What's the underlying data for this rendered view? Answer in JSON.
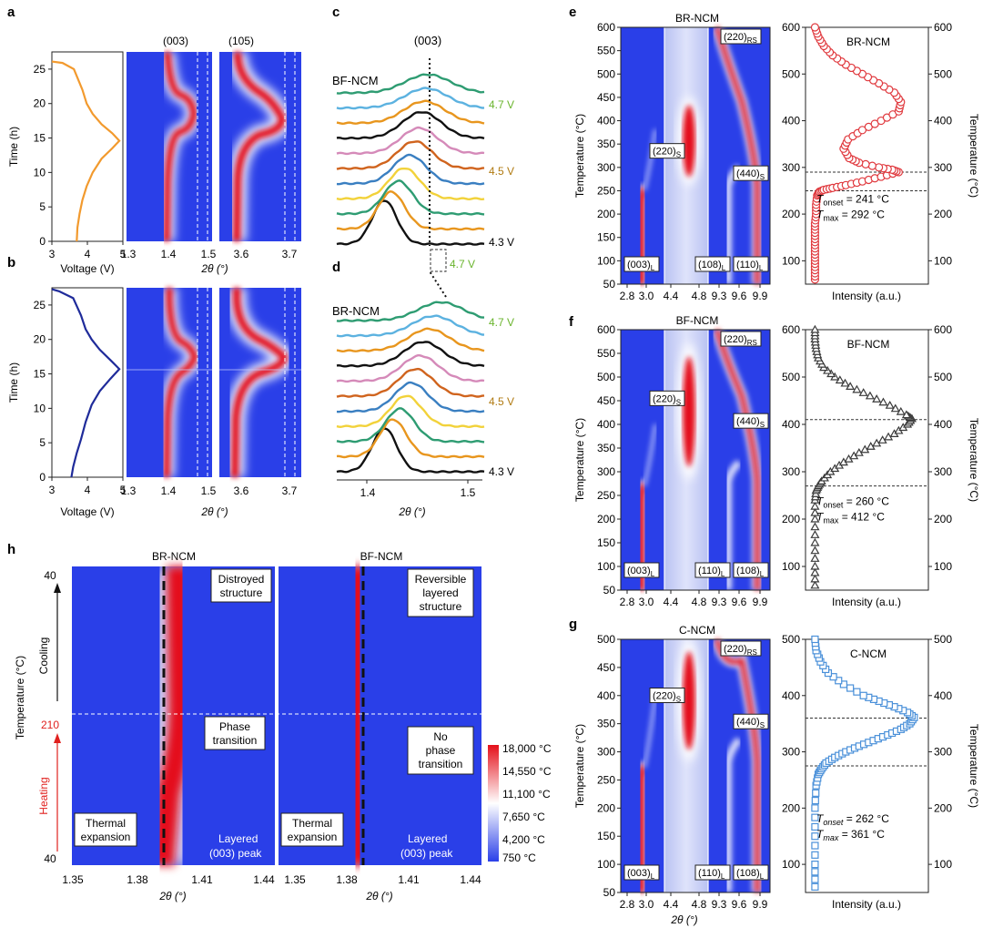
{
  "panel_letters": {
    "a": "a",
    "b": "b",
    "c": "c",
    "d": "d",
    "e": "e",
    "f": "f",
    "g": "g",
    "h": "h"
  },
  "colors": {
    "map_bg": "#2a3fe8",
    "map_high": "#e4101a",
    "voltage_a": "#f29a2e",
    "voltage_b": "#1f2b9a",
    "marker_e": "#e0393e",
    "marker_f": "#3a3a3a",
    "marker_g": "#4a90d9",
    "label_green": "#6ab42d",
    "label_gold": "#b07a10",
    "heating": "#e0201e",
    "stack_colors": [
      "#111111",
      "#e8961e",
      "#2e9c72",
      "#f2d23a",
      "#3a7fc1",
      "#d0641e",
      "#d58ab9",
      "#111111",
      "#e8961e",
      "#5cb2e0",
      "#2e9c72"
    ]
  },
  "chart_data": [
    {
      "id": "a",
      "type": "line",
      "xlabel": "Voltage (V)",
      "ylabel": "Time (h)",
      "xticks": [
        "3",
        "4",
        "5"
      ],
      "yticks": [
        "0",
        "5",
        "10",
        "15",
        "20",
        "25"
      ],
      "xlim": [
        3,
        5
      ],
      "ylim": [
        0,
        27.5
      ],
      "series": [
        {
          "x": [
            3.7,
            3.72,
            3.78,
            3.86,
            3.98,
            4.15,
            4.4,
            4.7,
            4.9,
            4.7,
            4.4,
            4.15,
            3.98,
            3.86,
            3.62,
            3.3,
            3.0
          ],
          "y": [
            0,
            2,
            4,
            6,
            8,
            10,
            12,
            13.5,
            14.6,
            15.7,
            17,
            18.5,
            20,
            22,
            25,
            25.9,
            26.1
          ]
        }
      ],
      "map_titles": [
        "(003)",
        "(105)"
      ],
      "map_xlabel": "2θ (°)",
      "map_xticks_1": [
        "1.3",
        "1.4",
        "1.5"
      ],
      "map_xticks_2": [
        "3.6",
        "3.7"
      ]
    },
    {
      "id": "b",
      "type": "line",
      "xlabel": "Voltage (V)",
      "ylabel": "Time (h)",
      "xticks": [
        "3",
        "4",
        "5"
      ],
      "yticks": [
        "0",
        "5",
        "10",
        "15",
        "20",
        "25"
      ],
      "xlim": [
        3,
        5
      ],
      "ylim": [
        0,
        27.5
      ],
      "series": [
        {
          "x": [
            3.55,
            3.6,
            3.7,
            3.82,
            3.95,
            4.12,
            4.35,
            4.65,
            4.9,
            4.65,
            4.35,
            4.12,
            3.95,
            3.82,
            3.6,
            3.2,
            3.0
          ],
          "y": [
            0,
            1.5,
            3.5,
            5.5,
            8,
            10.5,
            12.5,
            14.3,
            15.7,
            17,
            18.5,
            20,
            21.5,
            23.5,
            26,
            27,
            27.3
          ]
        }
      ],
      "map_xlabel": "2θ (°)",
      "map_xticks_1": [
        "1.3",
        "1.4",
        "1.5"
      ],
      "map_xticks_2": [
        "3.6",
        "3.7"
      ]
    },
    {
      "id": "c",
      "type": "line",
      "title": "(003)",
      "series_label": "BF-NCM",
      "voltage_labels": [
        "4.7 V",
        "4.5 V",
        "4.3 V"
      ],
      "peak_positions": [
        1.405,
        1.413,
        1.421,
        1.428,
        1.434,
        1.44,
        1.445,
        1.448,
        1.451,
        1.453,
        1.455
      ],
      "peak_heights": [
        1.0,
        0.85,
        0.75,
        0.7,
        0.65,
        0.62,
        0.58,
        0.6,
        0.5,
        0.45,
        0.42
      ],
      "xlim": [
        1.35,
        1.52
      ]
    },
    {
      "id": "d",
      "type": "line",
      "series_label": "BR-NCM",
      "voltage_labels": [
        "4.7 V",
        "4.5 V",
        "4.3 V"
      ],
      "between_label": "4.7 V",
      "peak_positions": [
        1.405,
        1.415,
        1.423,
        1.43,
        1.436,
        1.441,
        1.446,
        1.45,
        1.456,
        1.462,
        1.47
      ],
      "peak_heights": [
        1.0,
        0.85,
        0.75,
        0.7,
        0.65,
        0.62,
        0.58,
        0.55,
        0.5,
        0.45,
        0.42
      ],
      "xlabel": "2θ (°)",
      "xticks": [
        "1.4",
        "1.5"
      ],
      "xlim": [
        1.35,
        1.52
      ]
    },
    {
      "id": "e",
      "type": "heatmap",
      "title": "BR-NCM",
      "ylabel": "Temperature (°C)",
      "yticks": [
        "50",
        "100",
        "150",
        "200",
        "250",
        "300",
        "350",
        "400",
        "450",
        "500",
        "550",
        "600"
      ],
      "ylim": [
        50,
        600
      ],
      "xticks": [
        "2.8",
        "3.0",
        "4.4",
        "4.8",
        "9.3",
        "9.6",
        "9.9"
      ],
      "peak_labels": [
        {
          "t": "(003)",
          "s": "L"
        },
        {
          "t": "(220)",
          "s": "S"
        },
        {
          "t": "(108)",
          "s": "L"
        },
        {
          "t": "(110)",
          "s": "L"
        },
        {
          "t": "(440)",
          "s": "S"
        },
        {
          "t": "(220)",
          "s": "RS"
        }
      ],
      "profile_title": "BR-NCM",
      "profile_xlabel": "Intensity (a.u.)",
      "profile_ylabel": "Temperature (°C)",
      "profile_yticks": [
        "100",
        "200",
        "300",
        "400",
        "500",
        "600"
      ],
      "t_onset": "241 °C",
      "t_max": "292 °C",
      "onset_symbol": "onset",
      "max_symbol": "max",
      "hlines": [
        250,
        290
      ],
      "marker": "circle",
      "profile": {
        "T": [
          60,
          80,
          100,
          120,
          140,
          160,
          180,
          200,
          220,
          240,
          248,
          252,
          256,
          262,
          270,
          280,
          290,
          295,
          300,
          310,
          320,
          340,
          360,
          380,
          400,
          420,
          440,
          460,
          480,
          500,
          520,
          540,
          560,
          580,
          600
        ],
        "I": [
          0.02,
          0.02,
          0.02,
          0.02,
          0.02,
          0.02,
          0.02,
          0.03,
          0.03,
          0.04,
          0.06,
          0.1,
          0.18,
          0.3,
          0.45,
          0.62,
          0.78,
          0.72,
          0.6,
          0.42,
          0.33,
          0.28,
          0.32,
          0.45,
          0.62,
          0.78,
          0.8,
          0.74,
          0.6,
          0.45,
          0.3,
          0.18,
          0.1,
          0.05,
          0.02
        ]
      }
    },
    {
      "id": "f",
      "type": "heatmap",
      "title": "BF-NCM",
      "ylabel": "Temperature (°C)",
      "yticks": [
        "50",
        "100",
        "150",
        "200",
        "250",
        "300",
        "350",
        "400",
        "450",
        "500",
        "550",
        "600"
      ],
      "ylim": [
        50,
        600
      ],
      "xticks": [
        "2.8",
        "3.0",
        "4.4",
        "4.8",
        "9.3",
        "9.6",
        "9.9"
      ],
      "peak_labels": [
        {
          "t": "(003)",
          "s": "L"
        },
        {
          "t": "(220)",
          "s": "S"
        },
        {
          "t": "(110)",
          "s": "L"
        },
        {
          "t": "(108)",
          "s": "L"
        },
        {
          "t": "(440)",
          "s": "S"
        },
        {
          "t": "(220)",
          "s": "RS"
        }
      ],
      "profile_title": "BF-NCM",
      "profile_xlabel": "Intensity (a.u.)",
      "profile_ylabel": "Temperature (°C)",
      "profile_yticks": [
        "100",
        "200",
        "300",
        "400",
        "500",
        "600"
      ],
      "t_onset": "260 °C",
      "t_max": "412 °C",
      "onset_symbol": "onset",
      "max_symbol": "max",
      "hlines": [
        270,
        410
      ],
      "marker": "triangle",
      "profile": {
        "T": [
          60,
          100,
          150,
          200,
          240,
          260,
          270,
          280,
          300,
          320,
          340,
          360,
          380,
          400,
          412,
          420,
          440,
          460,
          480,
          500,
          520,
          540,
          560,
          580,
          600
        ],
        "I": [
          0.02,
          0.02,
          0.02,
          0.02,
          0.02,
          0.03,
          0.05,
          0.08,
          0.16,
          0.28,
          0.42,
          0.58,
          0.74,
          0.86,
          0.9,
          0.85,
          0.7,
          0.52,
          0.34,
          0.2,
          0.1,
          0.05,
          0.03,
          0.02,
          0.02
        ]
      }
    },
    {
      "id": "g",
      "type": "heatmap",
      "title": "C-NCM",
      "ylabel": "Temperature (°C)",
      "xlabel": "2θ (°)",
      "yticks": [
        "50",
        "100",
        "150",
        "200",
        "250",
        "300",
        "350",
        "400",
        "450",
        "500"
      ],
      "ylim": [
        50,
        500
      ],
      "xticks": [
        "2.8",
        "3.0",
        "4.4",
        "4.8",
        "9.3",
        "9.6",
        "9.9"
      ],
      "peak_labels": [
        {
          "t": "(003)",
          "s": "L"
        },
        {
          "t": "(220)",
          "s": "S"
        },
        {
          "t": "(110)",
          "s": "L"
        },
        {
          "t": "(108)",
          "s": "L"
        },
        {
          "t": "(440)",
          "s": "S"
        },
        {
          "t": "(220)",
          "s": "RS"
        }
      ],
      "profile_title": "C-NCM",
      "profile_xlabel": "Intensity (a.u.)",
      "profile_ylabel": "Temperature (°C)",
      "profile_yticks": [
        "100",
        "200",
        "300",
        "400",
        "500"
      ],
      "t_onset": "262 °C",
      "t_max": "361 °C",
      "onset_symbol": "onset",
      "max_symbol": "max",
      "hlines": [
        275,
        360
      ],
      "marker": "square",
      "profile": {
        "T": [
          60,
          100,
          150,
          200,
          240,
          260,
          270,
          280,
          290,
          300,
          310,
          320,
          330,
          340,
          350,
          361,
          370,
          380,
          390,
          400,
          420,
          440,
          460,
          480,
          500
        ],
        "I": [
          0.02,
          0.02,
          0.02,
          0.02,
          0.03,
          0.05,
          0.08,
          0.12,
          0.2,
          0.3,
          0.42,
          0.55,
          0.68,
          0.8,
          0.88,
          0.92,
          0.86,
          0.74,
          0.6,
          0.46,
          0.28,
          0.14,
          0.07,
          0.03,
          0.02
        ]
      }
    },
    {
      "id": "h",
      "type": "heatmap",
      "titles": [
        "BR-NCM",
        "BF-NCM"
      ],
      "ylabel": "Temperature (°C)",
      "xlabel": "2θ (°)",
      "xticks": [
        "1.35",
        "1.38",
        "1.41",
        "1.44"
      ],
      "xlim": [
        1.35,
        1.445
      ],
      "y_top": "40",
      "y_mid": "210",
      "y_bottom": "40",
      "cooling": "Cooling",
      "heating": "Heating",
      "colorbar_ticks": [
        "18,000 °C",
        "14,550 °C",
        "11,100 °C",
        "7,650 °C",
        "4,200 °C",
        "750 °C"
      ],
      "boxes_left": [
        [
          "Distroyed",
          "structure"
        ],
        [
          "Phase",
          "transition"
        ],
        [
          "Thermal",
          "expansion"
        ]
      ],
      "boxes_right": [
        [
          "Reversible",
          "layered",
          "structure"
        ],
        [
          "No",
          "phase",
          "transition"
        ],
        [
          "Thermal",
          "expansion"
        ]
      ],
      "layered_text": [
        "Layered",
        "(003) peak"
      ]
    }
  ]
}
